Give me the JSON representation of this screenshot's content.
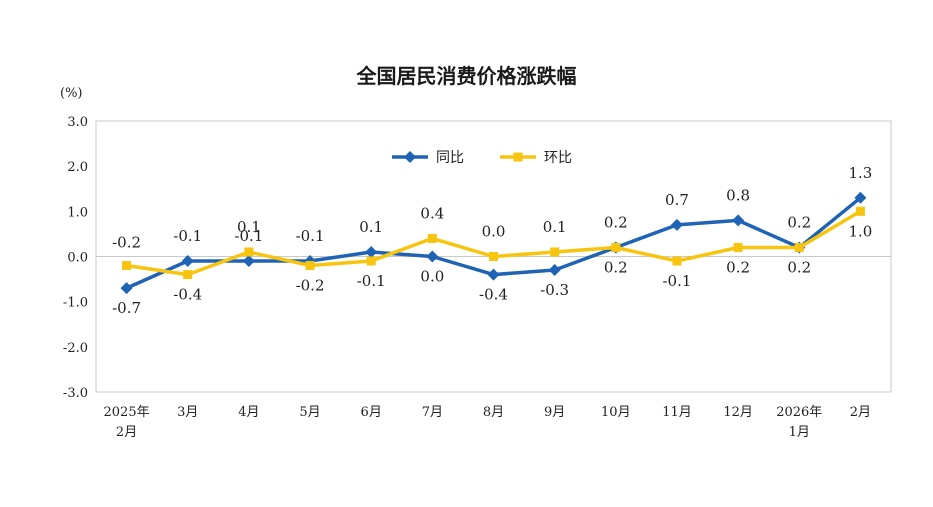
{
  "chart_data": {
    "type": "line",
    "title": "全国居民消费价格涨跌幅",
    "unit": "(%)",
    "ylim": [
      -3.0,
      3.0
    ],
    "yticks": [
      "3.0",
      "2.0",
      "1.0",
      "0.0",
      "-1.0",
      "-2.0",
      "-3.0"
    ],
    "categories": [
      [
        "2025年",
        "2月"
      ],
      [
        "3月"
      ],
      [
        "4月"
      ],
      [
        "5月"
      ],
      [
        "6月"
      ],
      [
        "7月"
      ],
      [
        "8月"
      ],
      [
        "9月"
      ],
      [
        "10月"
      ],
      [
        "11月"
      ],
      [
        "12月"
      ],
      [
        "2026年",
        "1月"
      ],
      [
        "2月"
      ]
    ],
    "legend_position": "top-center",
    "grid": false,
    "series": [
      {
        "name": "同比",
        "color": "#1f63b5",
        "marker": "diamond",
        "values": [
          -0.7,
          -0.1,
          -0.1,
          -0.1,
          0.1,
          0.0,
          -0.4,
          -0.3,
          0.2,
          0.7,
          0.8,
          0.2,
          1.3
        ],
        "labels": [
          "-0.7",
          "-0.1",
          "-0.1",
          "-0.1",
          "0.1",
          "0.0",
          "-0.4",
          "-0.3",
          "0.2",
          "0.7",
          "0.8",
          "0.2",
          "1.3"
        ]
      },
      {
        "name": "环比",
        "color": "#f7c50f",
        "marker": "square",
        "values": [
          -0.2,
          -0.4,
          0.1,
          -0.2,
          -0.1,
          0.4,
          0.0,
          0.1,
          0.2,
          -0.1,
          0.2,
          0.2,
          1.0
        ],
        "labels": [
          "-0.2",
          "-0.4",
          "0.1",
          "-0.2",
          "-0.1",
          "0.4",
          "0.0",
          "0.1",
          "0.2",
          "-0.1",
          "0.2",
          "0.2",
          "1.0"
        ]
      }
    ]
  }
}
